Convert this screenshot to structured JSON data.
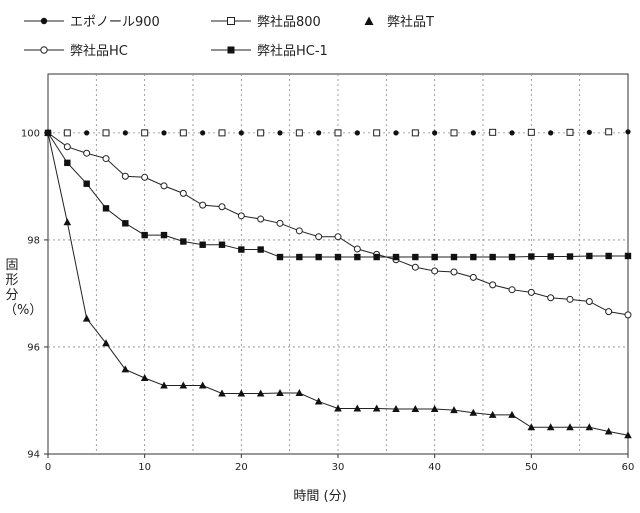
{
  "chart_data": {
    "type": "line",
    "title": "",
    "xlabel": "時間 (分)",
    "ylabel": "固形分（%）",
    "xlim": [
      0,
      60
    ],
    "ylim": [
      94,
      101.1
    ],
    "x_ticks": [
      "0",
      "10",
      "20",
      "30",
      "40",
      "50",
      "60"
    ],
    "y_ticks": [
      "94",
      "96",
      "98",
      "100"
    ],
    "grid": true,
    "legend_position": "top",
    "series": [
      {
        "name": "エポノール900",
        "marker": "filled-circle",
        "line": "dotted",
        "x": [
          0,
          2,
          4,
          6,
          8,
          10,
          12,
          14,
          16,
          18,
          20,
          22,
          24,
          26,
          28,
          30,
          32,
          34,
          36,
          38,
          40,
          42,
          44,
          46,
          48,
          50,
          52,
          54,
          56,
          58,
          60
        ],
        "y": [
          100,
          100,
          100,
          100,
          100,
          100,
          100,
          100,
          100,
          100,
          100,
          100,
          100,
          100,
          100,
          100,
          100,
          100,
          100,
          100,
          100,
          100,
          100,
          100,
          100,
          100,
          100,
          100.01,
          100.01,
          100.01,
          100.02
        ]
      },
      {
        "name": "弊社品800",
        "marker": "open-square",
        "line": "none",
        "x": [
          2,
          6,
          10,
          14,
          18,
          22,
          26,
          30,
          34,
          38,
          42,
          46,
          50,
          54,
          58
        ],
        "y": [
          100,
          100,
          100,
          100,
          100,
          100,
          100,
          100,
          100,
          100,
          100,
          100.01,
          100.01,
          100.01,
          100.02
        ]
      },
      {
        "name": "弊社品T",
        "marker": "filled-triangle",
        "line": "solid",
        "x": [
          0,
          2,
          4,
          6,
          8,
          10,
          12,
          14,
          16,
          18,
          20,
          22,
          24,
          26,
          28,
          30,
          32,
          34,
          36,
          38,
          40,
          42,
          44,
          46,
          48,
          50,
          52,
          54,
          56,
          58,
          60
        ],
        "y": [
          100,
          98.33,
          96.53,
          96.07,
          95.58,
          95.42,
          95.28,
          95.28,
          95.28,
          95.13,
          95.13,
          95.13,
          95.14,
          95.14,
          94.98,
          94.85,
          94.85,
          94.85,
          94.84,
          94.84,
          94.84,
          94.82,
          94.77,
          94.73,
          94.73,
          94.5,
          94.5,
          94.5,
          94.5,
          94.42,
          94.35
        ]
      },
      {
        "name": "弊社品HC",
        "marker": "open-circle",
        "line": "solid",
        "x": [
          0,
          2,
          4,
          6,
          8,
          10,
          12,
          14,
          16,
          18,
          20,
          22,
          24,
          26,
          28,
          30,
          32,
          34,
          36,
          38,
          40,
          42,
          44,
          46,
          48,
          50,
          52,
          54,
          56,
          58,
          60
        ],
        "y": [
          100,
          99.74,
          99.62,
          99.52,
          99.19,
          99.17,
          99.01,
          98.87,
          98.65,
          98.62,
          98.45,
          98.39,
          98.31,
          98.17,
          98.06,
          98.06,
          97.83,
          97.73,
          97.63,
          97.49,
          97.42,
          97.4,
          97.3,
          97.16,
          97.07,
          97.02,
          96.92,
          96.89,
          96.85,
          96.66,
          96.6
        ]
      },
      {
        "name": "弊社品HC-1",
        "marker": "filled-square",
        "line": "solid",
        "x": [
          0,
          2,
          4,
          6,
          8,
          10,
          12,
          14,
          16,
          18,
          20,
          22,
          24,
          26,
          28,
          30,
          32,
          34,
          36,
          38,
          40,
          42,
          44,
          46,
          48,
          50,
          52,
          54,
          56,
          58,
          60
        ],
        "y": [
          100,
          99.44,
          99.05,
          98.59,
          98.31,
          98.09,
          98.09,
          97.97,
          97.91,
          97.91,
          97.82,
          97.82,
          97.68,
          97.68,
          97.68,
          97.68,
          97.68,
          97.68,
          97.68,
          97.68,
          97.68,
          97.68,
          97.68,
          97.68,
          97.68,
          97.69,
          97.69,
          97.69,
          97.7,
          97.7,
          97.7
        ]
      }
    ]
  }
}
